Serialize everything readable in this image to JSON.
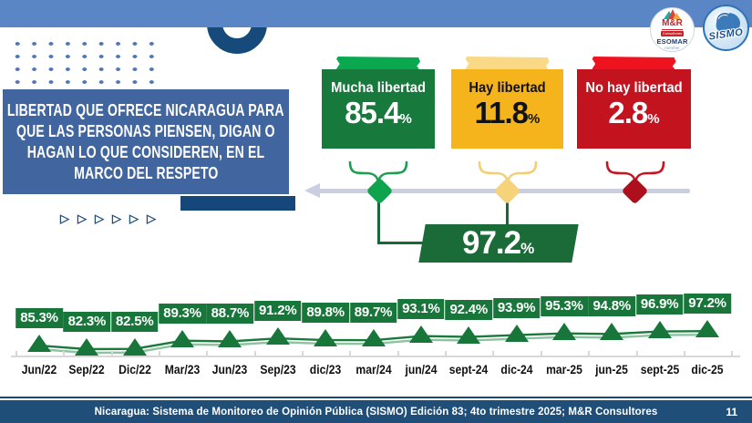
{
  "logos": {
    "mr": {
      "name": "M&R",
      "subtitle": "Consultores",
      "org": "ESOMAR",
      "member_label": "member"
    },
    "sismo": {
      "name": "SISMO"
    }
  },
  "question": {
    "lines": [
      "LIBERTAD QUE OFRECE NICARAGUA PARA",
      "QUE LAS PERSONAS PIENSEN, DIGAN O",
      "HAGAN LO QUE CONSIDEREN, EN EL",
      "MARCO DEL RESPETO"
    ]
  },
  "decorations": {
    "play_icon_char": "▷",
    "play_icon_count": 6,
    "dot_color": "#4f78b8",
    "ring_color": "#164a7b",
    "panel_color": "#41659f",
    "banner_color": "#5b86c6",
    "shadow_color": "#16477a"
  },
  "categories": [
    {
      "label": "Mucha libertad",
      "value": "85.4",
      "unit": "%",
      "box_color": "#17793b",
      "tape_color": "#0ba94f",
      "text_color": "#ffffff",
      "marker_color": "#0da44d",
      "brace_color": "#1e9e50"
    },
    {
      "label": "Hay libertad",
      "value": "11.8",
      "unit": "%",
      "box_color": "#f5b31c",
      "tape_color": "#f9d986",
      "text_color": "#121212",
      "marker_color": "#f6d27b",
      "brace_color": "#f3cf74"
    },
    {
      "label": "No hay libertad",
      "value": "2.8",
      "unit": "%",
      "box_color": "#c2131f",
      "tape_color": "#ef131f",
      "text_color": "#ffffff",
      "marker_color": "#ae0f1d",
      "brace_color": "#c81420"
    }
  ],
  "timeline": {
    "color": "#c9cfe0"
  },
  "highlight": {
    "value": "97.2",
    "unit": "%",
    "box_color": "#1a6b37",
    "connector_color": "#156a35"
  },
  "chart_data": {
    "type": "line",
    "title": "",
    "xlabel": "",
    "ylabel": "",
    "categories": [
      "Jun/22",
      "Sep/22",
      "Dic/22",
      "Mar/23",
      "Jun/23",
      "Sep/23",
      "dic/23",
      "mar/24",
      "jun/24",
      "sept-24",
      "dic-24",
      "mar-25",
      "jun-25",
      "sept-25",
      "dic-25"
    ],
    "values": [
      85.3,
      82.3,
      82.5,
      89.3,
      88.7,
      91.2,
      89.8,
      89.7,
      93.1,
      92.4,
      93.9,
      95.3,
      94.8,
      96.9,
      97.2
    ],
    "labels": [
      "85.3%",
      "82.3%",
      "82.5%",
      "89.3%",
      "88.7%",
      "91.2%",
      "89.8%",
      "89.7%",
      "93.1%",
      "92.4%",
      "93.9%",
      "95.3%",
      "94.8%",
      "96.9%",
      "97.2%"
    ],
    "ylim": [
      80,
      100
    ],
    "grid": false,
    "legend": "none",
    "marker": "triangle-up",
    "marker_color": "#19763a",
    "label_box_color": "#19763a",
    "label_text_color": "#ffffff",
    "line_color": "#1a7a3c",
    "line_color_light": "#8cc3a0",
    "axis_color": "#d8d8d8",
    "tick_label_color": "#111111"
  },
  "footer": {
    "text": "Nicaragua: Sistema de Monitoreo de Opinión Pública (SISMO) Edición 83; 4to trimestre 2025; M&R Consultores",
    "page": "11",
    "bar_color": "#1f4e79"
  }
}
